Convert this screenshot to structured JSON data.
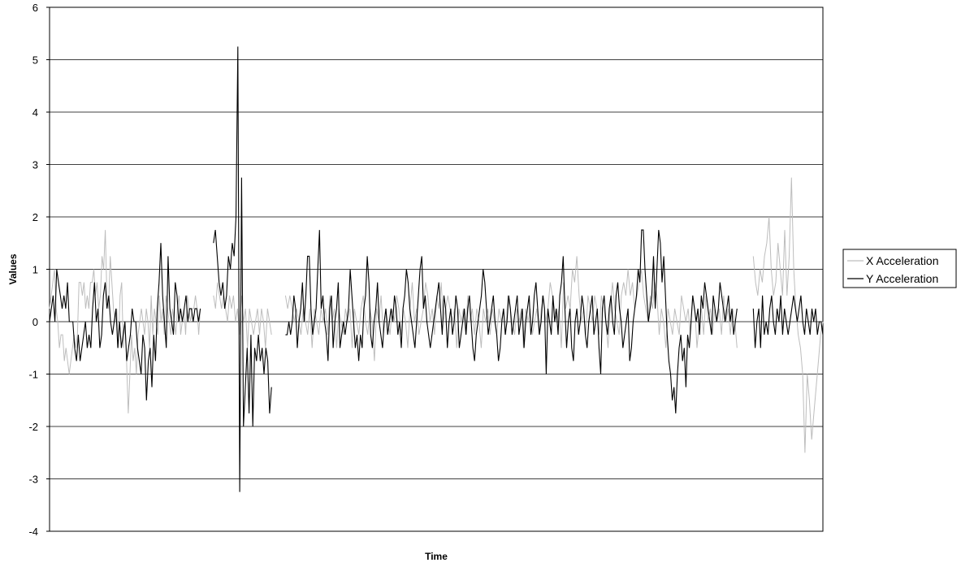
{
  "chart_data": {
    "type": "line",
    "title": "",
    "xlabel": "Time",
    "ylabel": "Values",
    "ylim": [
      -4,
      6
    ],
    "yticks": [
      "6",
      "5",
      "4",
      "3",
      "2",
      "1",
      "0",
      "-1",
      "-2",
      "-3",
      "-4"
    ],
    "grid": "horizontal",
    "legend_position": "right",
    "series": [
      {
        "name": "X Acceleration",
        "color": "#bdbdbd",
        "segments": [
          [
            0.25,
            0.5,
            0.75,
            1.0,
            0.25,
            0,
            -0.5,
            -0.25,
            -0.25,
            -0.75,
            -0.5,
            -0.75,
            -1.0,
            -0.75,
            -0.5,
            -0.25,
            -0.5,
            -0.25,
            0.75,
            0.75,
            0.5,
            0.75,
            0.25,
            0.5,
            0.25,
            0.75,
            0.75,
            1.0,
            0.5,
            0.75,
            0.25,
            0.5,
            1.25,
            1.0,
            1.75,
            0.5,
            0.25,
            1.25,
            0.75,
            0.25,
            0,
            0.25,
            -0.5,
            0.5,
            0.75,
            -0.5,
            0,
            -0.75,
            -1.75,
            -1.0,
            -0.25,
            -0.75,
            -0.5,
            -1.0,
            -0.25,
            0,
            0.25,
            0,
            -0.25,
            0.25,
            0,
            -0.5,
            0.5,
            -0.25,
            0.25,
            0,
            -0.25,
            0.5,
            0,
            0.25,
            -0.25,
            0.5,
            0.25,
            0,
            -0.25,
            0.25,
            0,
            -0.25,
            0.25,
            0.5,
            -0.25,
            0,
            0.25,
            -0.25,
            0.5,
            0.25,
            0,
            0.25,
            0.25,
            0.5,
            0.25,
            -0.25,
            0.25
          ],
          [
            0.5,
            0.25,
            0.75,
            0.5,
            0.25,
            0.5,
            0.25,
            0,
            0.5,
            0.25,
            0.5,
            0,
            0.25,
            -0.25,
            0.5,
            0,
            0.25,
            -0.5,
            0.25,
            0,
            -0.25,
            0,
            0.25,
            -0.25,
            0.25,
            0,
            -0.5,
            0.25,
            0,
            -0.25
          ],
          [
            0.5,
            0.25,
            0.5,
            0.25,
            0,
            0.25,
            0,
            -0.25,
            0.25,
            0,
            -0.25,
            0.25,
            -0.5,
            0.25,
            0,
            -0.25,
            0.25,
            0,
            0.25,
            -0.25,
            0.5,
            0,
            0.25,
            -0.5,
            0.25,
            0,
            -0.25,
            0.25,
            0,
            0.25,
            -0.5,
            0.25,
            0,
            -0.25,
            0.25,
            0.5,
            0,
            -0.25,
            0.25,
            0,
            -0.75,
            0.25,
            0,
            0.5,
            -0.25,
            0.25,
            0,
            -0.25,
            0.25,
            0,
            0.5,
            0.25,
            -0.25,
            0.25,
            0,
            -0.5,
            0.25,
            0.75,
            0,
            0.25,
            -0.25,
            0,
            0.25,
            0.75,
            0.5,
            0,
            0.25,
            -0.25,
            0.5,
            0.25,
            0.75,
            0,
            0.25,
            0.5,
            0.25,
            0,
            0.25,
            -0.5,
            0.25,
            0,
            0.25,
            -0.25,
            0.5,
            0,
            0.25,
            -0.25,
            0.25,
            0,
            -0.5,
            0.25,
            0,
            0.25,
            -0.25,
            0.25,
            0,
            -0.25,
            0.25,
            0,
            0.25,
            -0.25,
            0.5,
            0.25,
            0,
            -0.25,
            0.25,
            0,
            0.25,
            -0.5,
            0.25,
            0,
            0.25,
            -0.25,
            0,
            0.25,
            -0.25,
            0.25,
            0.5,
            0,
            0.25,
            0.75,
            0.5,
            0.25,
            0,
            0.25,
            -0.5,
            0.75,
            0.25,
            0.5,
            0.25,
            1.0,
            0.75,
            1.25,
            0.5,
            0,
            0.25,
            -0.25,
            0.5,
            0.25,
            0,
            0.5,
            0.25,
            -0.25,
            0.5,
            0.25,
            0,
            -0.5,
            0.25,
            0.75,
            0.25,
            0,
            -0.25,
            0.5,
            0.75,
            0.5,
            1.0,
            0.5,
            0.75,
            0.25,
            0.5,
            0.75,
            1.0,
            0.5,
            0.25,
            0,
            0.5,
            0.25,
            0.75,
            0.5,
            -0.25,
            0.25,
            0,
            -0.5,
            0.25,
            0,
            -0.25,
            0.25,
            0,
            -0.25,
            0.5,
            0.25,
            0,
            0.25,
            -0.25,
            0.5,
            0.25,
            -0.5,
            0,
            0.25,
            -0.25,
            0.5,
            0,
            0.25,
            -0.25,
            0.25,
            0,
            0.25,
            -0.25,
            0.5,
            0,
            0.25,
            -0.25,
            0.25,
            0,
            -0.5
          ],
          [
            1.25,
            0.75,
            0.5,
            1.0,
            0.75,
            1.25,
            1.5,
            2.0,
            1.0,
            0.5,
            0.75,
            1.5,
            1.0,
            0.5,
            1.75,
            0.5,
            1.25,
            2.75,
            1.0,
            0.25,
            -0.25,
            -0.5,
            -1.0,
            -2.5,
            -1.0,
            -1.5,
            -2.25,
            -1.75,
            -1.25,
            -0.75,
            -0.25,
            0
          ]
        ]
      },
      {
        "name": "Y Acceleration",
        "color": "#000000",
        "segments": [
          [
            0,
            0.25,
            0.5,
            0,
            1.0,
            0.75,
            0.5,
            0.25,
            0.5,
            0.25,
            0.75,
            0,
            0,
            0,
            -0.5,
            -0.75,
            -0.25,
            -0.75,
            -0.5,
            -0.25,
            0,
            -0.5,
            -0.25,
            -0.5,
            0.25,
            0.75,
            0,
            0.25,
            -0.5,
            -0.25,
            0.5,
            0.75,
            0.25,
            0.5,
            0,
            -0.25,
            0,
            0.25,
            -0.5,
            0,
            -0.5,
            -0.25,
            0,
            -0.75,
            -0.5,
            -0.25,
            0.25,
            0,
            0,
            -0.5,
            -0.75,
            -1.0,
            -0.25,
            -0.5,
            -1.5,
            -0.75,
            -0.5,
            -1.25,
            -0.25,
            -0.75,
            0.25,
            0.75,
            1.5,
            0.5,
            0,
            -0.5,
            1.25,
            0.25,
            0,
            -0.25,
            0.75,
            0.5,
            0,
            0.25,
            0,
            0.25,
            0.5,
            0,
            0.25,
            0.25,
            0,
            0.25,
            0.25,
            0,
            0.25
          ],
          [
            1.5,
            1.75,
            1.25,
            0.75,
            0.5,
            0.75,
            0.25,
            0.5,
            1.25,
            1.0,
            1.5,
            1.25,
            2.0,
            5.25,
            -3.25,
            2.75,
            -2.0,
            -1.25,
            -0.5,
            -1.75,
            -0.25,
            -2.0,
            -0.5,
            -0.75,
            -0.25,
            -0.75,
            -0.5,
            -1.0,
            -0.5,
            -0.75,
            -1.75,
            -1.25
          ],
          [
            -0.25,
            -0.25,
            0,
            -0.25,
            0,
            0.5,
            0.25,
            -0.5,
            0,
            0.25,
            0.75,
            0,
            0.5,
            1.25,
            1.25,
            0.25,
            -0.25,
            0,
            0.25,
            1.0,
            1.75,
            0.25,
            0.5,
            0,
            -0.25,
            -0.75,
            0.25,
            0.5,
            -0.5,
            0,
            0.25,
            0.75,
            -0.5,
            -0.25,
            0,
            -0.25,
            0,
            0.25,
            1.0,
            0.5,
            0,
            -0.5,
            -0.25,
            -0.75,
            -0.25,
            -0.5,
            0.25,
            0.5,
            1.25,
            0.75,
            -0.25,
            -0.5,
            0,
            0.25,
            0.75,
            0,
            -0.25,
            -0.5,
            0,
            0.25,
            -0.25,
            0,
            0.25,
            0,
            0.5,
            0.25,
            -0.25,
            0,
            -0.5,
            0.25,
            0.5,
            1.0,
            0.75,
            0.25,
            0,
            -0.25,
            -0.5,
            0,
            0.5,
            1.0,
            1.25,
            0.25,
            0.5,
            0,
            -0.25,
            -0.5,
            -0.25,
            0,
            0.25,
            0.5,
            0.75,
            0.25,
            -0.25,
            0.5,
            0.25,
            -0.5,
            0,
            0.25,
            -0.25,
            0,
            0.5,
            0.25,
            -0.5,
            -0.25,
            0,
            0.25,
            -0.25,
            0.25,
            0.5,
            0,
            -0.5,
            -0.75,
            -0.25,
            0,
            0.25,
            0.5,
            1.0,
            0.75,
            0.25,
            -0.25,
            0,
            0.25,
            0.5,
            0,
            -0.25,
            -0.75,
            -0.5,
            0,
            0.25,
            -0.25,
            0,
            0.5,
            0.25,
            -0.25,
            0,
            0.25,
            0.5,
            -0.25,
            0,
            0.25,
            -0.5,
            0,
            0.25,
            0.5,
            -0.25,
            0,
            0.5,
            0.75,
            0.25,
            -0.25,
            0,
            0.5,
            0.25,
            -1.0,
            0.25,
            0,
            -0.25,
            0.5,
            0,
            0.25,
            -0.25,
            0.5,
            0.75,
            1.25,
            0.25,
            -0.5,
            0,
            0.25,
            -0.5,
            -0.75,
            0,
            0.25,
            -0.25,
            0,
            0.5,
            0.25,
            -0.25,
            -0.5,
            0,
            0.25,
            0.5,
            -0.25,
            0,
            0.25,
            -0.5,
            -1.0,
            0.25,
            0.5,
            0,
            -0.25,
            0.25,
            0.5,
            0,
            -0.25,
            0.5,
            0.75,
            0.25,
            0,
            -0.5,
            -0.25,
            0,
            0.25,
            -0.75,
            -0.5,
            0,
            0.25,
            0.5,
            1.0,
            0.75,
            1.75,
            1.75,
            1.0,
            0.5,
            0,
            0.25,
            0.5,
            1.25,
            0.25,
            1.0,
            1.75,
            1.5,
            0.75,
            1.25,
            0.5,
            -0.25,
            -0.75,
            -1.0,
            -1.5,
            -1.25,
            -1.75,
            -1.0,
            -0.5,
            -0.25,
            -0.75,
            -0.5,
            -1.25,
            -0.25,
            -0.5,
            0,
            0.5,
            0.25,
            0,
            0.25,
            -0.25,
            0.5,
            0.25,
            0.75,
            0.5,
            0.25,
            0,
            -0.25,
            0.5,
            0.25,
            0,
            0.25,
            0.75,
            0.5,
            0.25,
            0,
            0.25,
            0.5,
            0,
            0.25,
            -0.25,
            0,
            0.25
          ],
          [
            0.25,
            -0.5,
            0,
            0.25,
            -0.5,
            0.5,
            -0.25,
            0,
            -0.25,
            0.25,
            0.5,
            0,
            -0.25,
            0.25,
            0,
            0.5,
            -0.25,
            0.25,
            0,
            -0.25,
            0,
            0.25,
            0.5,
            0.25,
            0,
            0.25,
            0.5,
            0,
            -0.25,
            0.25,
            0,
            -0.25,
            0.25,
            0,
            0.25,
            -0.25,
            0,
            0,
            -0.25
          ]
        ]
      }
    ]
  }
}
